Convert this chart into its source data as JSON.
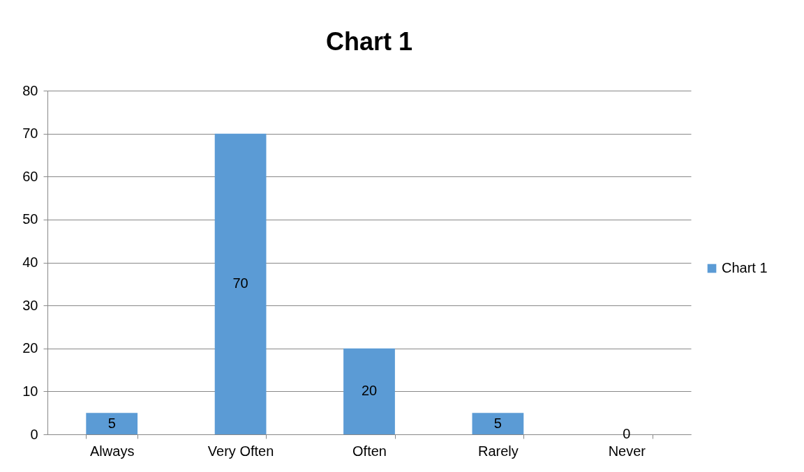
{
  "chart_data": {
    "type": "bar",
    "title": "Chart 1",
    "categories": [
      "Always",
      "Very Often",
      "Often",
      "Rarely",
      "Never"
    ],
    "series": [
      {
        "name": "Chart 1",
        "color": "#5b9bd5",
        "values": [
          5,
          70,
          20,
          5,
          0
        ]
      }
    ],
    "ylim": [
      0,
      80
    ],
    "yticks": [
      0,
      10,
      20,
      30,
      40,
      50,
      60,
      70,
      80
    ],
    "grid": "y",
    "legend": "right",
    "data_labels": true
  }
}
